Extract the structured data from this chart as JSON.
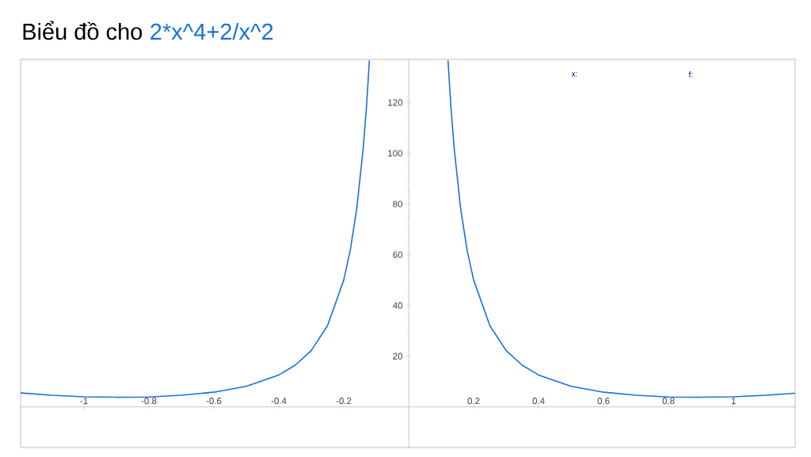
{
  "chart_data": {
    "type": "line",
    "title": "Biểu đồ cho",
    "subtitle": "2*x^4+2/x^2",
    "annotations": [
      "x:",
      "f:"
    ],
    "xlim": [
      -1.195,
      1.19
    ],
    "ylim": [
      -16,
      137
    ],
    "xticks": [
      {
        "value": -1,
        "label": "-1"
      },
      -0.8,
      -0.6,
      -0.4,
      -0.2,
      0.2,
      0.4,
      0.6,
      0.8,
      1
    ],
    "yticks": [
      20,
      40,
      60,
      80,
      100,
      120
    ],
    "series": [
      {
        "color": "#1a6fdc",
        "x": [
          -1.195,
          -1.1,
          -1.0,
          -0.9,
          -0.8,
          -0.7,
          -0.6,
          -0.5,
          -0.4,
          -0.35,
          -0.3,
          -0.25,
          -0.2,
          -0.18,
          -0.16,
          -0.14,
          -0.13,
          -0.121,
          0,
          0.121,
          0.13,
          0.14,
          0.16,
          0.18,
          0.2,
          0.25,
          0.3,
          0.35,
          0.4,
          0.5,
          0.6,
          0.7,
          0.8,
          0.9,
          1.0,
          1.1,
          1.19
        ],
        "values": [
          5.5,
          4.6,
          4.0,
          3.8,
          3.9,
          4.6,
          5.8,
          8.1,
          12.6,
          16.4,
          22.2,
          32.0,
          50.0,
          61.7,
          78.1,
          102.0,
          118.3,
          136.6,
          null,
          136.6,
          118.3,
          102.0,
          78.1,
          61.7,
          50.0,
          32.0,
          22.2,
          16.4,
          12.6,
          8.1,
          5.8,
          4.6,
          3.9,
          3.8,
          4.0,
          4.6,
          5.4
        ]
      }
    ]
  }
}
